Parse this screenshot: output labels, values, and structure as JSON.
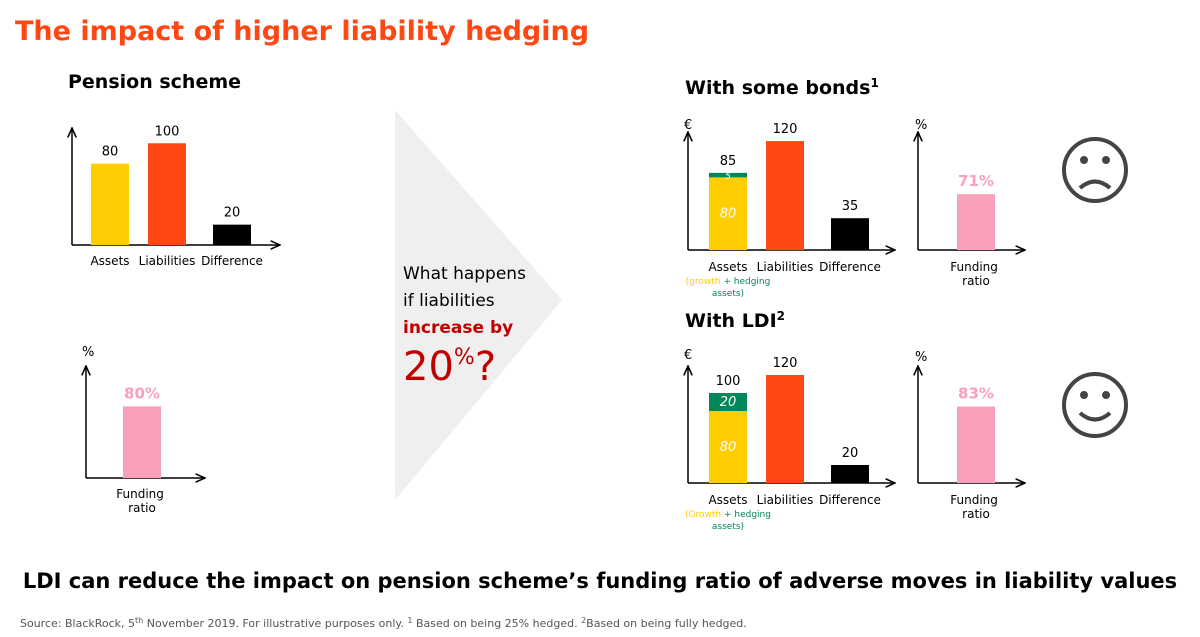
{
  "title": "The impact of higher liability hedging",
  "chart_data": [
    {
      "type": "bar",
      "title": "Pension scheme",
      "categories": [
        "Assets",
        "Liabilities",
        "Difference"
      ],
      "values": [
        80,
        100,
        20
      ],
      "colors": [
        "#ffcd00",
        "#ff4713",
        "#000000"
      ],
      "ylim": [
        0,
        115
      ]
    },
    {
      "type": "bar",
      "y_unit": "%",
      "categories": [
        "Funding ratio"
      ],
      "values": [
        80
      ],
      "value_labels": [
        "80%"
      ],
      "colors": [
        "#f9a0bb"
      ],
      "ylim": [
        0,
        125
      ]
    },
    {
      "type": "stacked",
      "title": "With some bonds",
      "title_note": "1",
      "y_unit": "€",
      "categories": [
        "Assets",
        "Liabilities",
        "Difference"
      ],
      "values": [
        85,
        120,
        35
      ],
      "colors": [
        "#ffcd00",
        "#ff4713",
        "#000000"
      ],
      "asset_parts": [
        {
          "name": "growth",
          "value": 80,
          "color": "#ffcd00"
        },
        {
          "name": "hedging",
          "value": 5,
          "color": "#00875a"
        }
      ],
      "asset_note": {
        "open": "(",
        "join": " + ",
        "close": "assets)"
      },
      "ylim": [
        0,
        130
      ]
    },
    {
      "type": "bar",
      "y_unit": "%",
      "categories": [
        "Funding ratio"
      ],
      "values": [
        71
      ],
      "value_labels": [
        "71%"
      ],
      "colors": [
        "#f9a0bb"
      ],
      "ylim": [
        0,
        150
      ]
    },
    {
      "type": "stacked",
      "title": "With LDI",
      "title_note": "2",
      "y_unit": "€",
      "categories": [
        "Assets",
        "Liabilities",
        "Difference"
      ],
      "values": [
        100,
        120,
        20
      ],
      "colors": [
        "#ffcd00",
        "#ff4713",
        "#000000"
      ],
      "asset_parts": [
        {
          "name": "Growth",
          "value": 80,
          "color": "#ffcd00"
        },
        {
          "name": "hedging",
          "value": 20,
          "color": "#00875a"
        }
      ],
      "asset_note": {
        "open": "(",
        "join": " + ",
        "close": "assets)"
      },
      "ylim": [
        0,
        130
      ]
    },
    {
      "type": "bar",
      "y_unit": "%",
      "categories": [
        "Funding ratio"
      ],
      "values": [
        83
      ],
      "value_labels": [
        "83%"
      ],
      "colors": [
        "#f9a0bb"
      ],
      "ylim": [
        0,
        127
      ]
    }
  ],
  "question": {
    "line1": "What happens",
    "line2": "if liabilities",
    "line3": "increase by",
    "number": "20",
    "unit": "%",
    "mark": "?"
  },
  "takeaway": "LDI can reduce the impact on pension scheme’s  funding ratio of adverse moves in liability values",
  "source": [
    "Source: BlackRock, 5",
    "th",
    " November 2019.  For illustrative purposes only.  ",
    "1",
    " Based on being 25% hedged.  ",
    "2",
    "Based on being fully hedged."
  ]
}
